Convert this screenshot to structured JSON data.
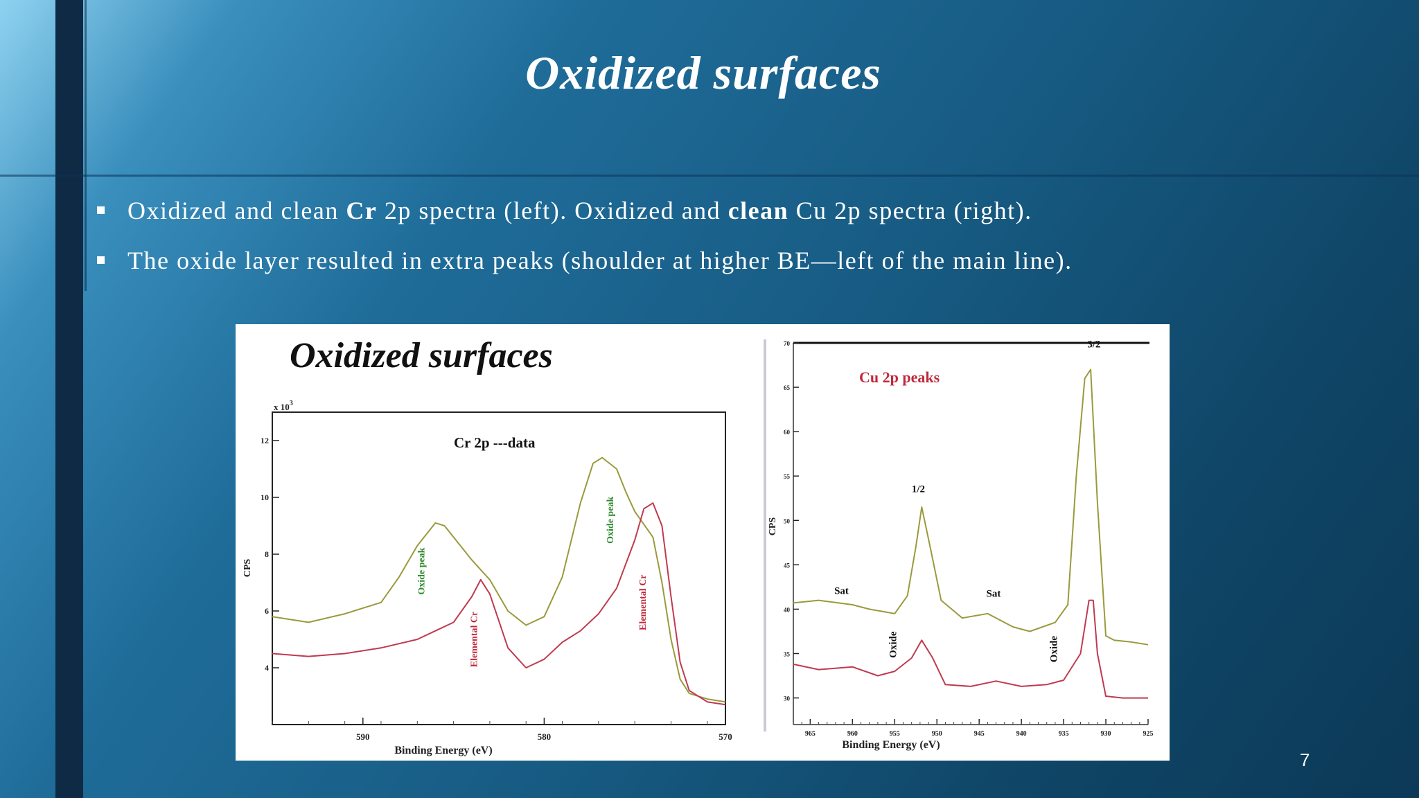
{
  "slide": {
    "title": "Oxidized surfaces",
    "bullets": [
      {
        "parts": [
          {
            "text": "Oxidized and clean ",
            "bold": false
          },
          {
            "text": "Cr",
            "bold": true
          },
          {
            "text": " 2p spectra (left). Oxidized and ",
            "bold": false
          },
          {
            "text": "clean",
            "bold": true
          },
          {
            "text": " Cu 2p spectra (right).",
            "bold": false
          }
        ]
      },
      {
        "parts": [
          {
            "text": "The oxide layer resulted in extra peaks (shoulder at higher BE—left of the main line).",
            "bold": false
          }
        ]
      }
    ],
    "page_number": "7"
  },
  "figure": {
    "heading": "Oxidized surfaces",
    "colors": {
      "oxidized": "#9a9a3c",
      "clean": "#c03a4f",
      "label_green": "#2e8b2e",
      "label_red": "#c0283b"
    }
  },
  "chart_data": [
    {
      "type": "line",
      "title": "Cr 2p ---data",
      "xlabel": "Binding Energy (eV)",
      "ylabel": "CPS",
      "y_multiplier": "x 10",
      "y_multiplier_exp": "3",
      "xlim": [
        595,
        570
      ],
      "ylim": [
        2,
        13
      ],
      "x_ticks": [
        590,
        580,
        570
      ],
      "y_ticks": [
        4,
        6,
        8,
        10,
        12
      ],
      "series": [
        {
          "role": "oxidized",
          "x": [
            595,
            593,
            591,
            589,
            588,
            587,
            586,
            585.5,
            585,
            584,
            583,
            582,
            581,
            580,
            579,
            578,
            577.3,
            576.8,
            576,
            575.5,
            575,
            574,
            573.5,
            573,
            572.5,
            572,
            571,
            570
          ],
          "y": [
            5.8,
            5.6,
            5.9,
            6.3,
            7.2,
            8.3,
            9.1,
            9.0,
            8.6,
            7.8,
            7.1,
            6.0,
            5.5,
            5.8,
            7.2,
            9.8,
            11.2,
            11.4,
            11.0,
            10.2,
            9.5,
            8.6,
            7.0,
            5.0,
            3.6,
            3.1,
            2.9,
            2.8
          ]
        },
        {
          "role": "clean",
          "x": [
            595,
            593,
            591,
            589,
            587,
            586,
            585,
            584,
            583.5,
            583,
            582,
            581,
            580,
            579,
            578,
            577,
            576,
            575,
            574.5,
            574,
            573.5,
            573,
            572.5,
            572,
            571,
            570
          ],
          "y": [
            4.5,
            4.4,
            4.5,
            4.7,
            5.0,
            5.3,
            5.6,
            6.5,
            7.1,
            6.6,
            4.7,
            4.0,
            4.3,
            4.9,
            5.3,
            5.9,
            6.8,
            8.5,
            9.6,
            9.8,
            9.0,
            6.5,
            4.2,
            3.2,
            2.8,
            2.7
          ]
        }
      ],
      "annotations": [
        {
          "text": "Oxide peak",
          "x": 586.6,
          "y": 7.4,
          "color": "label_green"
        },
        {
          "text": "Elemental Cr",
          "x": 583.7,
          "y": 5.0,
          "color": "label_red"
        },
        {
          "text": "Oxide peak",
          "x": 576.2,
          "y": 9.2,
          "color": "label_green"
        },
        {
          "text": "Elemental Cr",
          "x": 574.4,
          "y": 6.3,
          "color": "label_red"
        }
      ]
    },
    {
      "type": "line",
      "title": "Cu 2p peaks",
      "xlabel": "Binding Energy (eV)",
      "ylabel": "CPS",
      "xlim": [
        967,
        925
      ],
      "ylim": [
        27,
        70
      ],
      "x_ticks": [
        965,
        960,
        955,
        950,
        945,
        940,
        935,
        930,
        925
      ],
      "y_ticks": [
        30,
        35,
        40,
        45,
        50,
        55,
        60,
        65,
        70
      ],
      "series": [
        {
          "role": "oxidized",
          "x": [
            967,
            964,
            960,
            958,
            955,
            953.5,
            952.5,
            951.8,
            950.8,
            949.5,
            947,
            944,
            941,
            939,
            936,
            934.5,
            933.5,
            932.5,
            931.8,
            931,
            930,
            929,
            927,
            925
          ],
          "y": [
            40.7,
            41.0,
            40.5,
            40.0,
            39.5,
            41.5,
            47.0,
            51.5,
            47.0,
            41.0,
            39.0,
            39.5,
            38.0,
            37.5,
            38.5,
            40.5,
            55.0,
            66.0,
            67.0,
            52.0,
            37.0,
            36.5,
            36.3,
            36.0
          ]
        },
        {
          "role": "clean",
          "x": [
            967,
            964,
            960,
            957,
            955,
            953,
            951.8,
            950.5,
            949,
            946,
            943,
            940,
            937,
            935,
            933,
            932,
            931.5,
            931,
            930,
            928,
            925
          ],
          "y": [
            33.8,
            33.2,
            33.5,
            32.5,
            33.0,
            34.5,
            36.5,
            34.5,
            31.5,
            31.3,
            31.9,
            31.3,
            31.5,
            32.0,
            35.0,
            41.0,
            41.0,
            35.0,
            30.2,
            30.0,
            30.0
          ]
        }
      ],
      "annotations": [
        {
          "text": "1/2",
          "x": 952.2,
          "y": 53.2,
          "color": "black"
        },
        {
          "text": "3/2",
          "x": 931.4,
          "y": 69.5,
          "color": "black"
        },
        {
          "text": "Sat",
          "x": 961.3,
          "y": 41.7,
          "color": "black"
        },
        {
          "text": "Sat",
          "x": 943.3,
          "y": 41.4,
          "color": "black"
        },
        {
          "text": "Oxide",
          "x": 954.8,
          "y": 36.0,
          "color": "black",
          "rotate": true
        },
        {
          "text": "Oxide",
          "x": 935.8,
          "y": 35.5,
          "color": "black",
          "rotate": true
        }
      ]
    }
  ]
}
